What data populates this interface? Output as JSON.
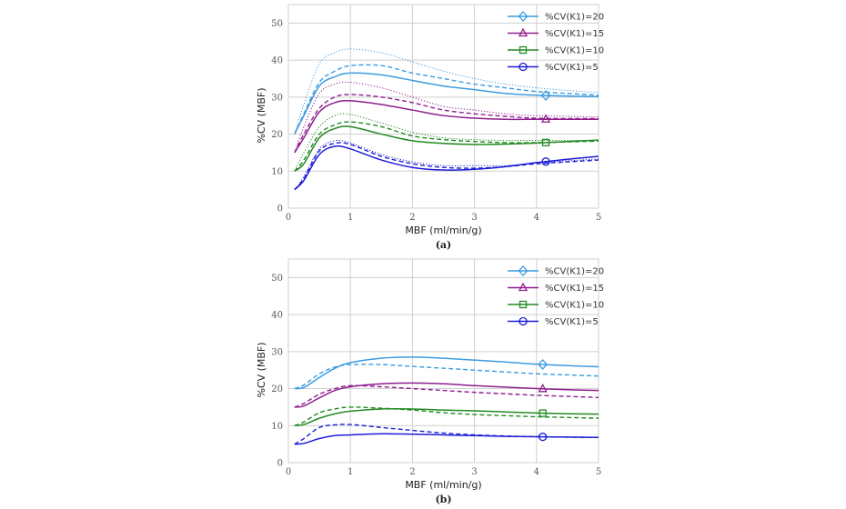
{
  "chart_data": [
    {
      "type": "line",
      "caption": "(a)",
      "xlabel": "MBF (ml/min/g)",
      "ylabel": "%CV (MBF)",
      "xlim": [
        0,
        5
      ],
      "ylim": [
        0,
        55
      ],
      "xticks": [
        "0",
        "1",
        "2",
        "3",
        "4",
        "5"
      ],
      "yticks": [
        "0",
        "10",
        "20",
        "30",
        "40",
        "50"
      ],
      "grid": true,
      "legend_position": "top-right",
      "marker_x": 4.15,
      "x": [
        0.1,
        0.25,
        0.5,
        0.75,
        1,
        1.5,
        2,
        2.5,
        3,
        3.5,
        4,
        4.5,
        5
      ],
      "series": [
        {
          "name": "%CV(K1)=20",
          "color": "#3c9be0",
          "marker": "diamond",
          "solid": [
            20,
            25,
            33,
            35.5,
            36.5,
            36,
            34.5,
            33,
            32,
            31,
            30.5,
            30.3,
            30.1
          ],
          "dashed": [
            20,
            25.5,
            34,
            37,
            38.5,
            38.5,
            36.5,
            35,
            33.5,
            32.5,
            31.5,
            31,
            30.5
          ],
          "dotted": [
            20,
            28,
            39,
            42,
            43,
            42,
            39.5,
            37,
            35,
            33.5,
            32.5,
            31.8,
            31.2
          ]
        },
        {
          "name": "%CV(K1)=15",
          "color": "#8e1e8e",
          "marker": "triangle",
          "solid": [
            15,
            19,
            26,
            28.5,
            29,
            28,
            26.5,
            25,
            24.3,
            24,
            24,
            24,
            24
          ],
          "dashed": [
            15,
            20,
            27,
            30,
            30.7,
            30,
            28.5,
            26.5,
            25.5,
            24.8,
            24.3,
            24.2,
            24.2
          ],
          "dotted": [
            15,
            22,
            31,
            33.5,
            34,
            32.5,
            30,
            27.5,
            26.5,
            25.5,
            25,
            24.8,
            24.6
          ]
        },
        {
          "name": "%CV(K1)=10",
          "color": "#238a23",
          "marker": "square",
          "solid": [
            10,
            12,
            19,
            21.5,
            22,
            20,
            18.2,
            17.5,
            17.2,
            17.3,
            17.6,
            18,
            18.4
          ],
          "dashed": [
            10,
            13,
            20,
            22.5,
            23.3,
            22,
            19.5,
            18.5,
            18,
            17.7,
            17.7,
            17.9,
            18.1
          ],
          "dotted": [
            10,
            15,
            22,
            25,
            25.3,
            23,
            20.5,
            19,
            18.5,
            18.3,
            18.3,
            18.3,
            18.3
          ]
        },
        {
          "name": "%CV(K1)=5",
          "color": "#1c1cd6",
          "marker": "circle",
          "solid": [
            5,
            7.5,
            14.5,
            16.7,
            16,
            13,
            11,
            10.3,
            10.5,
            11.2,
            12.3,
            13.2,
            14
          ],
          "dashed": [
            5,
            8,
            15.5,
            17.5,
            17.2,
            14,
            12,
            11,
            10.8,
            11.2,
            12,
            12.5,
            13
          ],
          "dotted": [
            5,
            8.5,
            16,
            18.2,
            17.6,
            14.5,
            12.5,
            11.5,
            11.5,
            11.5,
            12.2,
            12.8,
            13.3
          ]
        }
      ]
    },
    {
      "type": "line",
      "caption": "(b)",
      "xlabel": "MBF (ml/min/g)",
      "ylabel": "%CV (MBF)",
      "xlim": [
        0,
        5
      ],
      "ylim": [
        0,
        55
      ],
      "xticks": [
        "0",
        "1",
        "2",
        "3",
        "4",
        "5"
      ],
      "yticks": [
        "0",
        "10",
        "20",
        "30",
        "40",
        "50"
      ],
      "grid": true,
      "legend_position": "top-right",
      "marker_x": 4.1,
      "x": [
        0.1,
        0.25,
        0.5,
        0.75,
        1,
        1.5,
        2,
        2.5,
        3,
        3.5,
        4,
        4.5,
        5
      ],
      "series": [
        {
          "name": "%CV(K1)=20",
          "color": "#3c9be0",
          "marker": "diamond",
          "solid": [
            20,
            20.3,
            23,
            25.5,
            27,
            28.2,
            28.5,
            28.2,
            27.7,
            27.2,
            26.6,
            26.2,
            25.9
          ],
          "dashed": [
            20,
            21,
            24,
            25.8,
            26.5,
            26.5,
            26,
            25.5,
            25,
            24.5,
            24,
            23.7,
            23.4
          ]
        },
        {
          "name": "%CV(K1)=15",
          "color": "#8e1e8e",
          "marker": "triangle",
          "solid": [
            15,
            15.3,
            17.5,
            19.5,
            20.5,
            21.3,
            21.5,
            21.3,
            20.8,
            20.4,
            20,
            19.7,
            19.5
          ],
          "dashed": [
            15,
            16,
            18.5,
            20,
            20.8,
            20.5,
            20,
            19.5,
            19,
            18.6,
            18.2,
            17.9,
            17.6
          ]
        },
        {
          "name": "%CV(K1)=10",
          "color": "#238a23",
          "marker": "square",
          "solid": [
            10,
            10.3,
            12,
            13.2,
            13.9,
            14.5,
            14.5,
            14.2,
            14,
            13.7,
            13.4,
            13.2,
            13.1
          ],
          "dashed": [
            10,
            11,
            13.5,
            14.5,
            15,
            14.7,
            14.2,
            13.5,
            13,
            12.7,
            12.4,
            12.2,
            12
          ]
        },
        {
          "name": "%CV(K1)=5",
          "color": "#1c1cd6",
          "marker": "circle",
          "solid": [
            5,
            5.2,
            6.5,
            7.3,
            7.5,
            7.8,
            7.7,
            7.5,
            7.3,
            7.1,
            7,
            6.9,
            6.8
          ],
          "dashed": [
            5,
            6.5,
            9.5,
            10.2,
            10.3,
            9.5,
            8.7,
            8,
            7.5,
            7.2,
            7,
            6.9,
            6.8
          ]
        }
      ]
    }
  ]
}
